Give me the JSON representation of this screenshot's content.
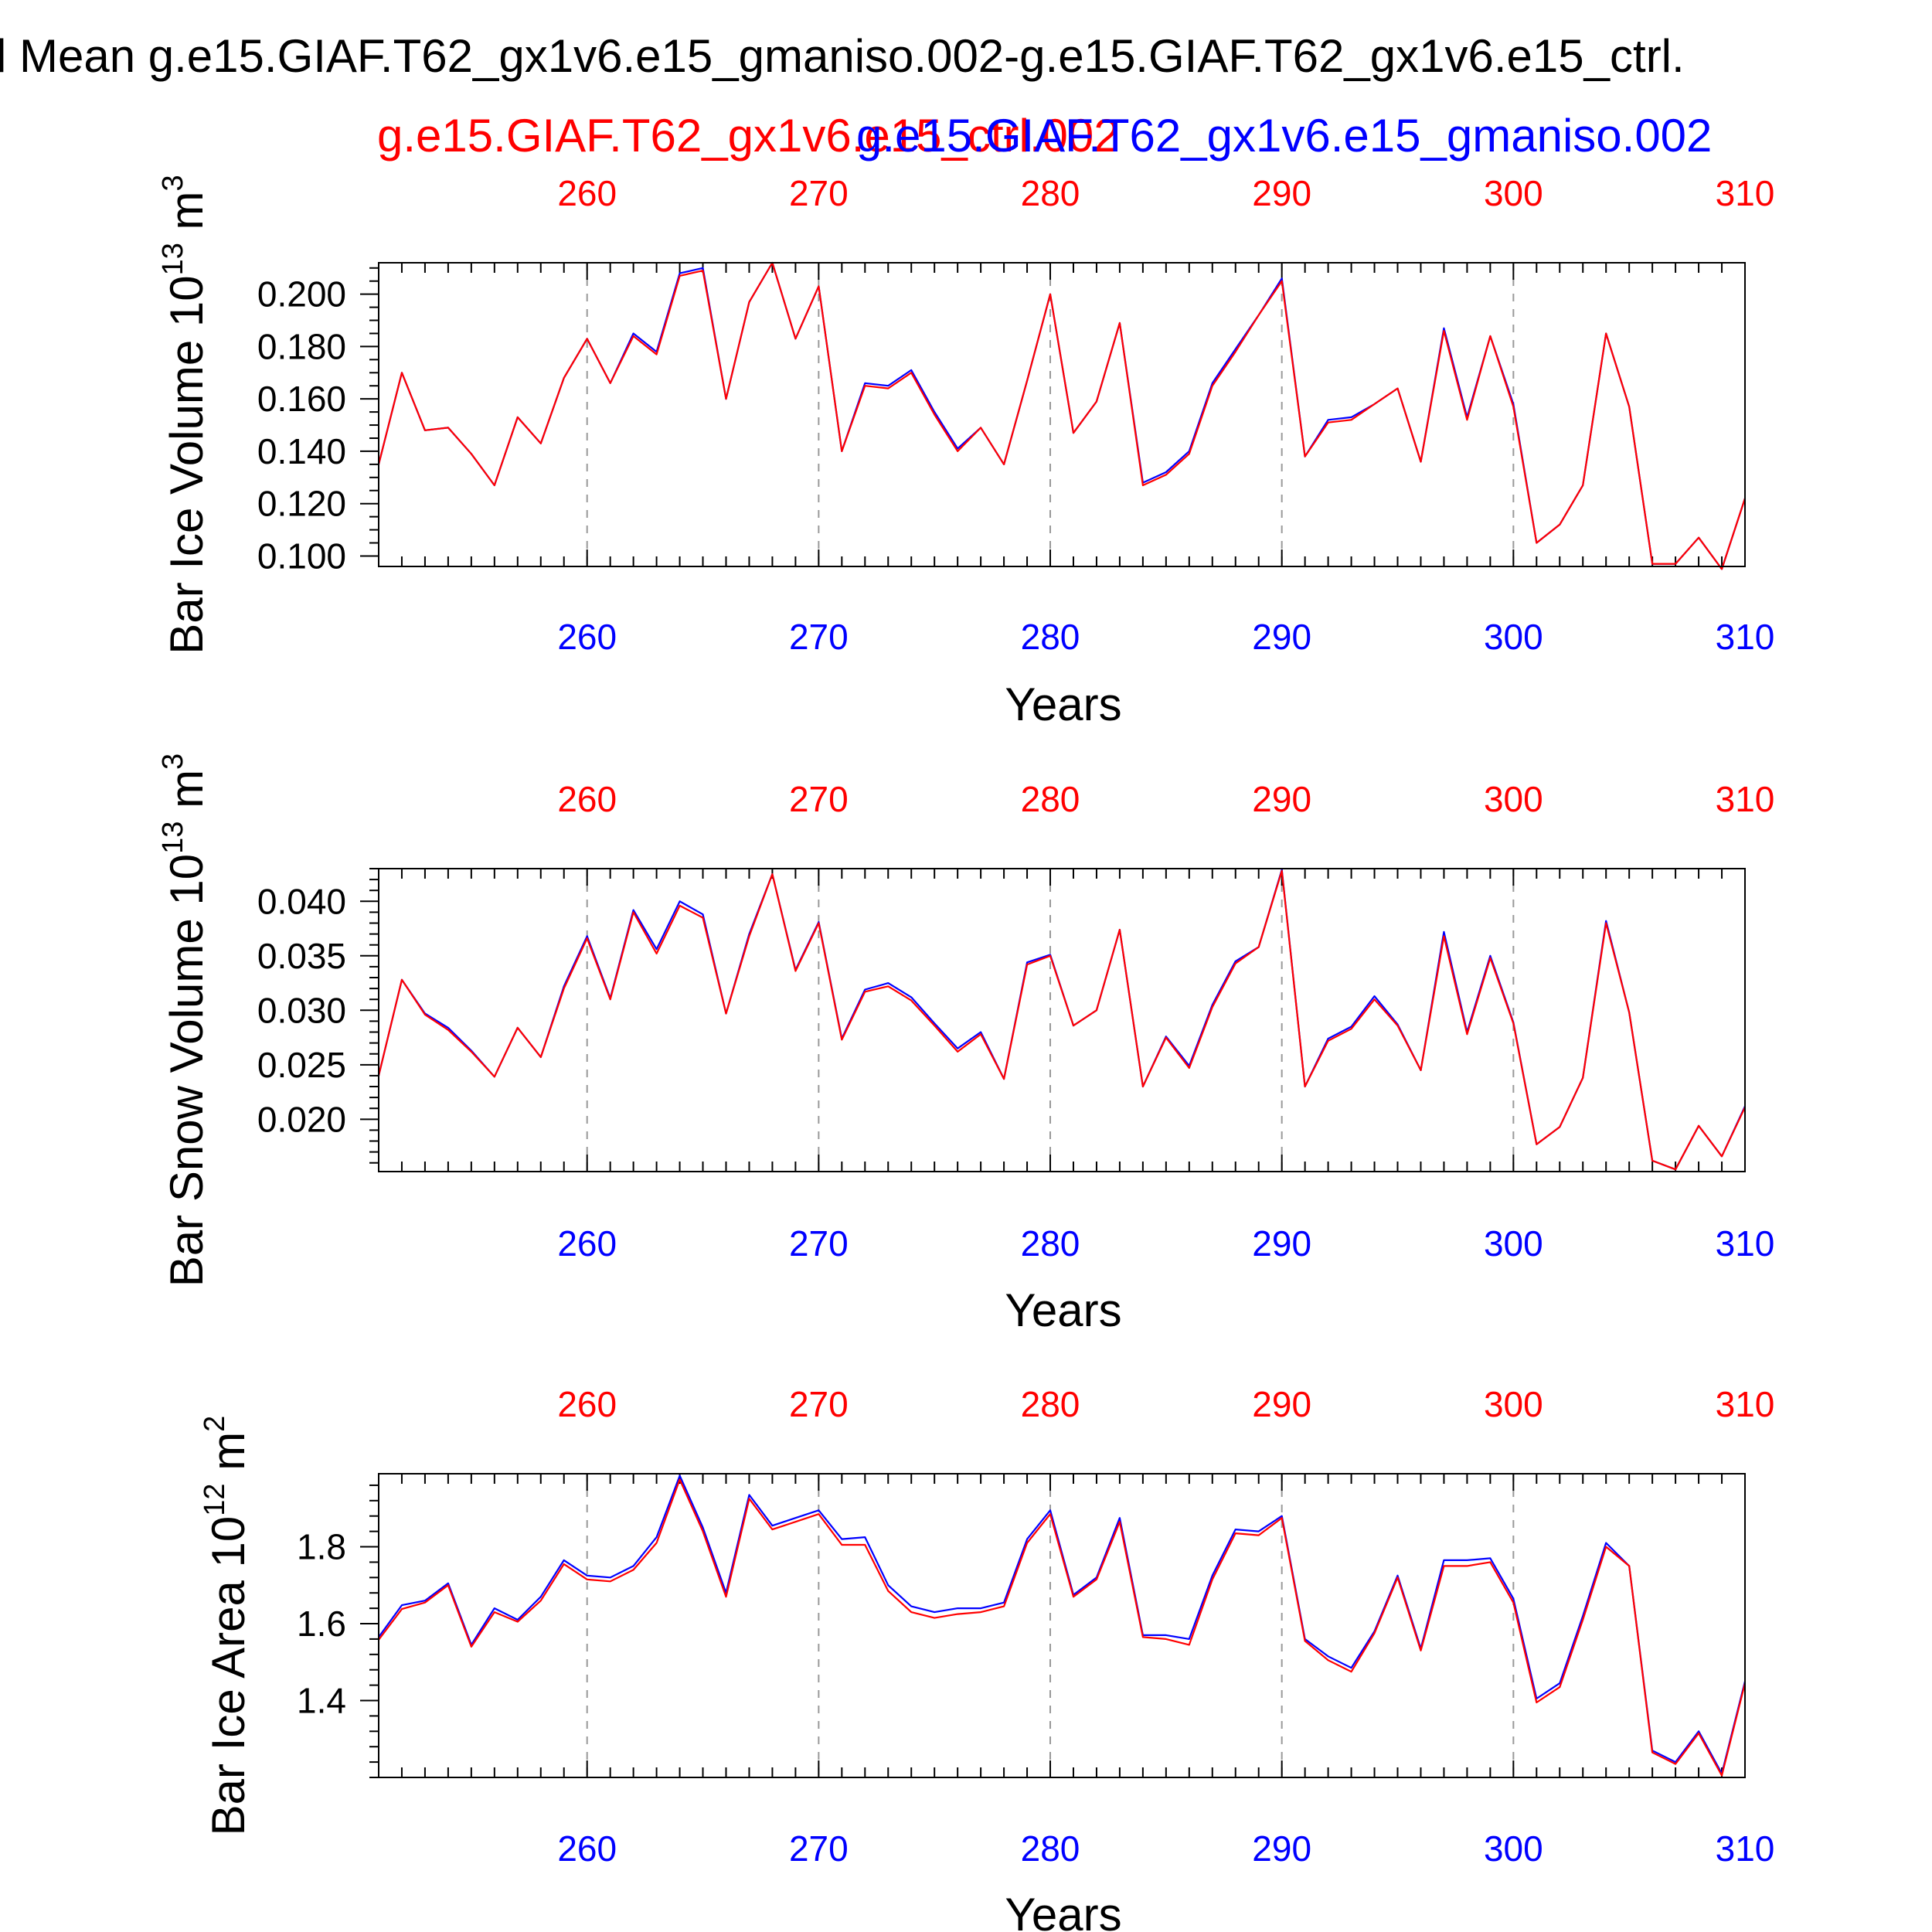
{
  "title": "l Mean g.e15.GIAF.T62_gx1v6.e15_gmaniso.002-g.e15.GIAF.T62_gx1v6.e15_ctrl.",
  "legend": {
    "red_label": "g.e15.GIAF.T62_gx1v6.e15_ctrl.002",
    "blue_label": "g.e15.GIAF.T62_gx1v6.e15_gmaniso.002"
  },
  "colors": {
    "red": "#ff0000",
    "blue": "#0000ff",
    "axis": "#000000",
    "grid": "#999999"
  },
  "chart_data": [
    {
      "type": "line",
      "ylabel_main": "Bar Ice Volume 10",
      "ylabel_exp": "13",
      "ylabel_unit": " m",
      "ylabel_unit_exp": "3",
      "xlabel": "Years",
      "xlim": [
        251,
        310
      ],
      "ylim": [
        0.096,
        0.212
      ],
      "xticks": [
        260,
        270,
        280,
        290,
        300,
        310
      ],
      "yticks": [
        0.1,
        0.12,
        0.14,
        0.16,
        0.18,
        0.2
      ],
      "ytick_labels": [
        "0.100",
        "0.120",
        "0.140",
        "0.160",
        "0.180",
        "0.200"
      ],
      "yminor_step": 0.005,
      "x": [
        251,
        252,
        253,
        254,
        255,
        256,
        257,
        258,
        259,
        260,
        261,
        262,
        263,
        264,
        265,
        266,
        267,
        268,
        269,
        270,
        271,
        272,
        273,
        274,
        275,
        276,
        277,
        278,
        279,
        280,
        281,
        282,
        283,
        284,
        285,
        286,
        287,
        288,
        289,
        290,
        291,
        292,
        293,
        294,
        295,
        296,
        297,
        298,
        299,
        300,
        301,
        302,
        303,
        304,
        305,
        306,
        307,
        308,
        309,
        310
      ],
      "series": [
        {
          "name": "g.e15.GIAF.T62_gx1v6.e15_ctrl.002",
          "color": "#ff0000",
          "values": [
            0.135,
            0.17,
            0.148,
            0.149,
            0.139,
            0.127,
            0.153,
            0.143,
            0.168,
            0.183,
            0.166,
            0.184,
            0.177,
            0.207,
            0.209,
            0.16,
            0.197,
            0.212,
            0.183,
            0.203,
            0.14,
            0.165,
            0.164,
            0.17,
            0.154,
            0.14,
            0.149,
            0.135,
            0.167,
            0.2,
            0.147,
            0.159,
            0.189,
            0.127,
            0.131,
            0.139,
            0.165,
            0.178,
            0.192,
            0.205,
            0.138,
            0.151,
            0.152,
            0.158,
            0.164,
            0.136,
            0.186,
            0.152,
            0.184,
            0.157,
            0.105,
            0.112,
            0.127,
            0.185,
            0.157,
            0.097,
            0.097,
            0.107,
            0.095,
            0.122
          ]
        },
        {
          "name": "g.e15.GIAF.T62_gx1v6.e15_gmaniso.002",
          "color": "#0000ff",
          "values": [
            0.135,
            0.17,
            0.148,
            0.149,
            0.139,
            0.127,
            0.153,
            0.143,
            0.168,
            0.183,
            0.166,
            0.185,
            0.178,
            0.208,
            0.21,
            0.16,
            0.197,
            0.212,
            0.183,
            0.203,
            0.14,
            0.166,
            0.165,
            0.171,
            0.155,
            0.141,
            0.149,
            0.135,
            0.167,
            0.2,
            0.147,
            0.159,
            0.189,
            0.128,
            0.132,
            0.14,
            0.166,
            0.179,
            0.192,
            0.206,
            0.138,
            0.152,
            0.153,
            0.158,
            0.164,
            0.136,
            0.187,
            0.153,
            0.184,
            0.158,
            0.105,
            0.112,
            0.127,
            0.185,
            0.157,
            0.097,
            0.097,
            0.107,
            0.095,
            0.122
          ]
        }
      ]
    },
    {
      "type": "line",
      "ylabel_main": "Bar Snow Volume 10",
      "ylabel_exp": "13",
      "ylabel_unit": " m",
      "ylabel_unit_exp": "3",
      "xlabel": "Years",
      "xlim": [
        251,
        310
      ],
      "ylim": [
        0.0152,
        0.043
      ],
      "xticks": [
        260,
        270,
        280,
        290,
        300,
        310
      ],
      "yticks": [
        0.02,
        0.025,
        0.03,
        0.035,
        0.04
      ],
      "ytick_labels": [
        "0.020",
        "0.025",
        "0.030",
        "0.035",
        "0.040"
      ],
      "yminor_step": 0.001,
      "x": [
        251,
        252,
        253,
        254,
        255,
        256,
        257,
        258,
        259,
        260,
        261,
        262,
        263,
        264,
        265,
        266,
        267,
        268,
        269,
        270,
        271,
        272,
        273,
        274,
        275,
        276,
        277,
        278,
        279,
        280,
        281,
        282,
        283,
        284,
        285,
        286,
        287,
        288,
        289,
        290,
        291,
        292,
        293,
        294,
        295,
        296,
        297,
        298,
        299,
        300,
        301,
        302,
        303,
        304,
        305,
        306,
        307,
        308,
        309,
        310
      ],
      "series": [
        {
          "name": "g.e15.GIAF.T62_gx1v6.e15_ctrl.002",
          "color": "#ff0000",
          "values": [
            0.024,
            0.0328,
            0.0296,
            0.0282,
            0.0262,
            0.0239,
            0.0284,
            0.0257,
            0.032,
            0.0366,
            0.031,
            0.039,
            0.0352,
            0.0396,
            0.0385,
            0.0297,
            0.0368,
            0.0425,
            0.0336,
            0.038,
            0.0273,
            0.0317,
            0.0322,
            0.0309,
            0.0286,
            0.0262,
            0.0278,
            0.0237,
            0.0342,
            0.035,
            0.0286,
            0.03,
            0.0374,
            0.023,
            0.0275,
            0.0247,
            0.0303,
            0.0343,
            0.0358,
            0.0428,
            0.023,
            0.0272,
            0.0283,
            0.031,
            0.0286,
            0.0245,
            0.0368,
            0.0278,
            0.0348,
            0.0288,
            0.0177,
            0.0193,
            0.0238,
            0.038,
            0.0298,
            0.0162,
            0.0154,
            0.0194,
            0.0166,
            0.0211
          ]
        },
        {
          "name": "g.e15.GIAF.T62_gx1v6.e15_gmaniso.002",
          "color": "#0000ff",
          "values": [
            0.024,
            0.0328,
            0.0297,
            0.0284,
            0.0263,
            0.0239,
            0.0284,
            0.0257,
            0.0322,
            0.0368,
            0.0311,
            0.0392,
            0.0356,
            0.04,
            0.0388,
            0.0297,
            0.037,
            0.0425,
            0.0337,
            0.0381,
            0.0274,
            0.0319,
            0.0325,
            0.0312,
            0.0288,
            0.0265,
            0.028,
            0.0237,
            0.0344,
            0.0351,
            0.0286,
            0.03,
            0.0374,
            0.023,
            0.0276,
            0.0249,
            0.0305,
            0.0345,
            0.0358,
            0.0429,
            0.023,
            0.0274,
            0.0285,
            0.0313,
            0.0287,
            0.0245,
            0.0372,
            0.028,
            0.035,
            0.0289,
            0.0177,
            0.0193,
            0.0238,
            0.0382,
            0.0298,
            0.0162,
            0.0154,
            0.0194,
            0.0166,
            0.0212
          ]
        }
      ]
    },
    {
      "type": "line",
      "ylabel_main": "Bar Ice Area 10",
      "ylabel_exp": "12",
      "ylabel_unit": " m",
      "ylabel_unit_exp": "2",
      "xlabel": "Years",
      "xlim": [
        251,
        310
      ],
      "ylim": [
        1.2,
        1.99
      ],
      "xticks": [
        260,
        270,
        280,
        290,
        300,
        310
      ],
      "yticks": [
        1.4,
        1.6,
        1.8
      ],
      "ytick_labels": [
        "1.4",
        "1.6",
        "1.8"
      ],
      "yminor_step": 0.04,
      "x": [
        251,
        252,
        253,
        254,
        255,
        256,
        257,
        258,
        259,
        260,
        261,
        262,
        263,
        264,
        265,
        266,
        267,
        268,
        269,
        270,
        271,
        272,
        273,
        274,
        275,
        276,
        277,
        278,
        279,
        280,
        281,
        282,
        283,
        284,
        285,
        286,
        287,
        288,
        289,
        290,
        291,
        292,
        293,
        294,
        295,
        296,
        297,
        298,
        299,
        300,
        301,
        302,
        303,
        304,
        305,
        306,
        307,
        308,
        309,
        310
      ],
      "series": [
        {
          "name": "g.e15.GIAF.T62_gx1v6.e15_ctrl.002",
          "color": "#ff0000",
          "values": [
            1.558,
            1.638,
            1.655,
            1.7,
            1.54,
            1.63,
            1.605,
            1.66,
            1.755,
            1.715,
            1.71,
            1.74,
            1.81,
            1.975,
            1.84,
            1.67,
            1.925,
            1.845,
            1.865,
            1.885,
            1.805,
            1.805,
            1.685,
            1.63,
            1.615,
            1.625,
            1.63,
            1.645,
            1.81,
            1.885,
            1.67,
            1.715,
            1.865,
            1.565,
            1.56,
            1.545,
            1.715,
            1.835,
            1.83,
            1.875,
            1.555,
            1.505,
            1.475,
            1.575,
            1.72,
            1.53,
            1.75,
            1.75,
            1.76,
            1.655,
            1.395,
            1.435,
            1.61,
            1.8,
            1.75,
            1.265,
            1.235,
            1.315,
            1.205,
            1.445
          ]
        },
        {
          "name": "g.e15.GIAF.T62_gx1v6.e15_gmaniso.002",
          "color": "#0000ff",
          "values": [
            1.565,
            1.648,
            1.66,
            1.705,
            1.545,
            1.64,
            1.61,
            1.67,
            1.765,
            1.725,
            1.72,
            1.75,
            1.825,
            1.985,
            1.85,
            1.68,
            1.935,
            1.855,
            1.875,
            1.895,
            1.82,
            1.825,
            1.7,
            1.645,
            1.63,
            1.64,
            1.64,
            1.655,
            1.82,
            1.895,
            1.675,
            1.72,
            1.875,
            1.57,
            1.57,
            1.56,
            1.725,
            1.845,
            1.84,
            1.88,
            1.56,
            1.515,
            1.485,
            1.58,
            1.725,
            1.535,
            1.765,
            1.765,
            1.77,
            1.665,
            1.405,
            1.445,
            1.62,
            1.81,
            1.75,
            1.27,
            1.24,
            1.32,
            1.21,
            1.45
          ]
        }
      ]
    }
  ]
}
